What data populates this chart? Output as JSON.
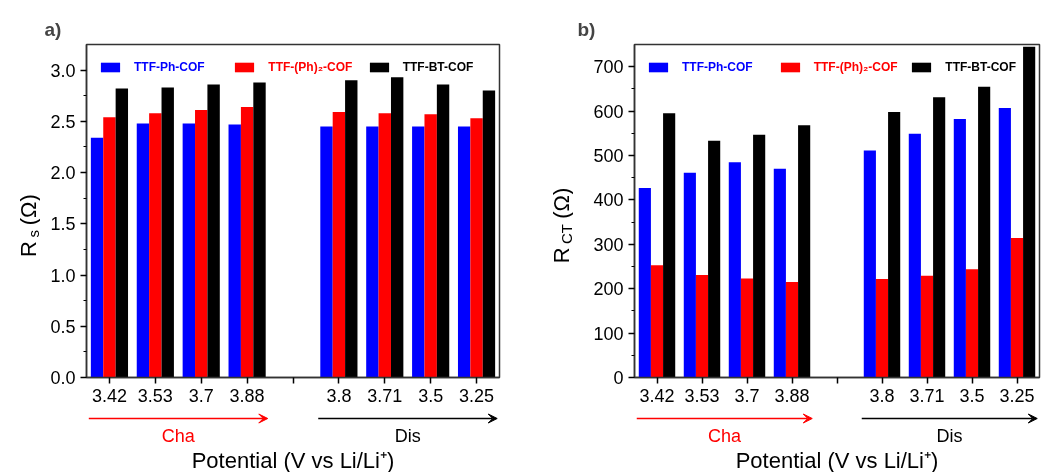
{
  "chart_data": [
    {
      "type": "bar",
      "title": "a)",
      "xlabel": "Potential (V vs Li/Li⁺)",
      "ylabel": "R$_{s}$ (Ω)",
      "categories": [
        "3.42",
        "3.53",
        "3.7",
        "3.88",
        null,
        "3.8",
        "3.71",
        "3.5",
        "3.25"
      ],
      "ylim": [
        0,
        3.25
      ],
      "yticks": [
        {
          "value": 0,
          "label": "0.0"
        },
        0.5,
        {
          "value": 1,
          "label": "1.0"
        },
        1.5,
        {
          "value": 2,
          "label": "2.0"
        },
        2.5,
        {
          "value": 3,
          "label": "3.0"
        }
      ],
      "series": [
        {
          "name": "TTF-Ph-COF",
          "color": "#0000ff",
          "values": [
            2.34,
            2.48,
            2.48,
            2.47,
            null,
            2.45,
            2.45,
            2.45,
            2.45
          ]
        },
        {
          "name": "TTF-(Ph)₂-COF",
          "color": "#ff0000",
          "values": [
            2.54,
            2.58,
            2.61,
            2.64,
            null,
            2.59,
            2.58,
            2.57,
            2.53
          ]
        },
        {
          "name": "TTF-BT-COF",
          "color": "#000000",
          "values": [
            2.82,
            2.83,
            2.86,
            2.88,
            null,
            2.9,
            2.93,
            2.86,
            2.8
          ]
        }
      ],
      "annotations": [
        "Cha",
        "Dis"
      ],
      "legend": "top",
      "grid": false
    },
    {
      "type": "bar",
      "title": "b)",
      "xlabel": "Potential (V vs Li/Li⁺)",
      "ylabel": "R$_{CT}$ (Ω)",
      "categories": [
        "3.42",
        "3.53",
        "3.7",
        "3.88",
        null,
        "3.8",
        "3.71",
        "3.5",
        "3.25"
      ],
      "ylim": [
        0,
        750
      ],
      "yticks": [
        0,
        100,
        200,
        300,
        400,
        500,
        600,
        700
      ],
      "series": [
        {
          "name": "TTF-Ph-COF",
          "color": "#0000ff",
          "values": [
            427,
            461,
            485,
            470,
            null,
            511,
            549,
            582,
            607
          ]
        },
        {
          "name": "TTF-(Ph)₂-COF",
          "color": "#ff0000",
          "values": [
            253,
            231,
            223,
            215,
            null,
            222,
            229,
            244,
            314
          ]
        },
        {
          "name": "TTF-BT-COF",
          "color": "#000000",
          "values": [
            595,
            533,
            547,
            568,
            null,
            598,
            631,
            655,
            745
          ]
        }
      ],
      "annotations": [
        "Cha",
        "Dis"
      ],
      "legend": "top",
      "grid": false
    }
  ]
}
